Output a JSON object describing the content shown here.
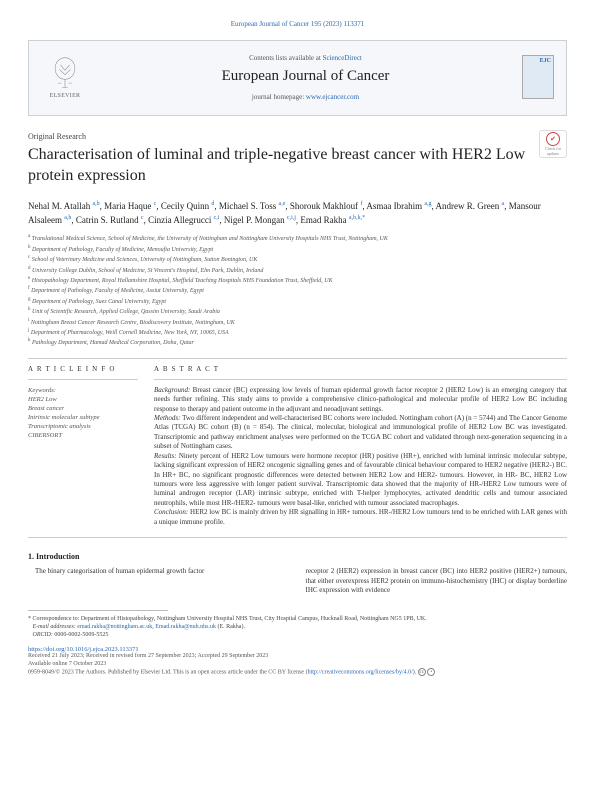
{
  "running_head": "European Journal of Cancer 195 (2023) 113371",
  "journal_box": {
    "elsevier_label": "ELSEVIER",
    "contents_prefix": "Contents lists available at ",
    "contents_link": "ScienceDirect",
    "journal_name": "European Journal of Cancer",
    "homepage_prefix": "journal homepage: ",
    "homepage_link": "www.ejcancer.com",
    "cover_tag_a": "EJC",
    "cover_tag_b": ""
  },
  "article_type": "Original Research",
  "check_badge": {
    "line1": "Check for",
    "line2": "updates"
  },
  "title": "Characterisation of luminal and triple-negative breast cancer with HER2 Low protein expression",
  "authors_html": "Nehal M. Atallah <sup>a,b</sup>, Maria Haque <sup>c</sup>, Cecily Quinn <sup>d</sup>, Michael S. Toss <sup>a,e</sup>, Shorouk Makhlouf <sup>f</sup>, Asmaa Ibrahim <sup>a,g</sup>, Andrew R. Green <sup>a</sup>, Mansour Alsaleem <sup>a,h</sup>, Catrin S. Rutland <sup>c</sup>, Cinzia Allegrucci <sup>c,i</sup>, Nigel P. Mongan <sup>c,i,j</sup>, Emad Rakha <sup>a,b,k,*</sup>",
  "affiliations": [
    "a Translational Medical Science, School of Medicine, the University of Nottingham and Nottingham University Hospitals NHS Trust, Nottingham, UK",
    "b Department of Pathology, Faculty of Medicine, Menoufia University, Egypt",
    "c School of Veterinary Medicine and Sciences, University of Nottingham, Sutton Bonington, UK",
    "d University College Dublin, School of Medicine, St Vincent's Hospital, Elm Park, Dublin, Ireland",
    "e Histopathology Department, Royal Hallamshire Hospital, Sheffield Teaching Hospitals NHS Foundation Trust, Sheffield, UK",
    "f Department of Pathology, Faculty of Medicine, Assiut University, Egypt",
    "g Department of Pathology, Suez Canal University, Egypt",
    "h Unit of Scientific Research, Applied College, Qassim University, Saudi Arabia",
    "i Nottingham Breast Cancer Research Centre, Biodiscovery Institute, Nottingham, UK",
    "j Department of Pharmacology, Weill Cornell Medicine, New York, NY, 10065, USA",
    "k Pathology Department, Hamad Medical Corporation, Doha, Qatar"
  ],
  "info_head": "A R T I C L E   I N F O",
  "abstract_head": "A B S T R A C T",
  "keywords_label": "Keywords:",
  "keywords": [
    "HER2 Low",
    "Breast cancer",
    "Intrinsic molecular subtype",
    "Transcriptomic analysis",
    "CIBERSORT"
  ],
  "abstract": {
    "background_label": "Background:",
    "background": " Breast cancer (BC) expressing low levels of human epidermal growth factor receptor 2 (HER2 Low) is an emerging category that needs further refining. This study aims to provide a comprehensive clinico-pathological and molecular profile of HER2 Low BC including response to therapy and patient outcome in the adjuvant and neoadjuvant settings.",
    "methods_label": "Methods:",
    "methods": " Two different independent and well-characterised BC cohorts were included. Nottingham cohort (A) (n = 5744) and The Cancer Genome Atlas (TCGA) BC cohort (B) (n = 854). The clinical, molecular, biological and immunological profile of HER2 Low BC was investigated. Transcriptomic and pathway enrichment analyses were performed on the TCGA BC cohort and validated through next-generation sequencing in a subset of Nottingham cases.",
    "results_label": "Results:",
    "results": " Ninety percent of HER2 Low tumours were hormone receptor (HR) positive (HR+), enriched with luminal intrinsic molecular subtype, lacking significant expression of HER2 oncogenic signalling genes and of favourable clinical behaviour compared to HER2 negative (HER2-) BC. In HR+ BC, no significant prognostic differences were detected between HER2 Low and HER2- tumours. However, in HR- BC, HER2 Low tumours were less aggressive with longer patient survival. Transcriptomic data showed that the majority of HR-/HER2 Low tumours were of luminal androgen receptor (LAR) intrinsic subtype, enriched with T-helper lymphocytes, activated dendritic cells and tumour associated neutrophils, while most HR-/HER2- tumours were basal-like, enriched with tumour associated macrophages.",
    "conclusion_label": "Conclusion:",
    "conclusion": " HER2 low BC is mainly driven by HR signalling in HR+ tumours. HR-/HER2 Low tumours tend to be enriched with LAR genes with a unique immune profile."
  },
  "intro": {
    "heading": "1.   Introduction",
    "col1": "The binary categorisation of human epidermal growth factor",
    "col2": "receptor 2 (HER2) expression in breast cancer (BC) into HER2 positive (HER2+) tumours, that either overexpress HER2 protein on immuno-histochemistry (IHC) or display borderline IHC expression with evidence"
  },
  "footnotes": {
    "corr_label": "* Correspondence to:",
    "corr_text": " Department of Histopathology, Nottingham University Hospital NHS Trust, City Hospital Campus, Hucknall Road, Nottingham NG5 1PB, UK.",
    "email_label": "E-mail addresses: ",
    "email1": "emad.rakha@nottingham.ac.uk",
    "email_sep": ", ",
    "email2": "Emad.rakha@nuh.nhs.uk",
    "email_suffix": " (E. Rakha).",
    "orcid_label": "ORCID: ",
    "orcid": "0000-0002-5009-5525"
  },
  "doi": "https://doi.org/10.1016/j.ejca.2023.113371",
  "pub": {
    "received": "Received 21 July 2023; Received in revised form 27 September 2023; Accepted 29 September 2023",
    "available": "Available online 7 October 2023",
    "copyright_prefix": "0959-8049/© 2023 The Authors. Published by Elsevier Ltd. This is an open access article under the CC BY license (",
    "cc_link": "http://creativecommons.org/licenses/by/4.0/",
    "copyright_suffix": ")."
  }
}
